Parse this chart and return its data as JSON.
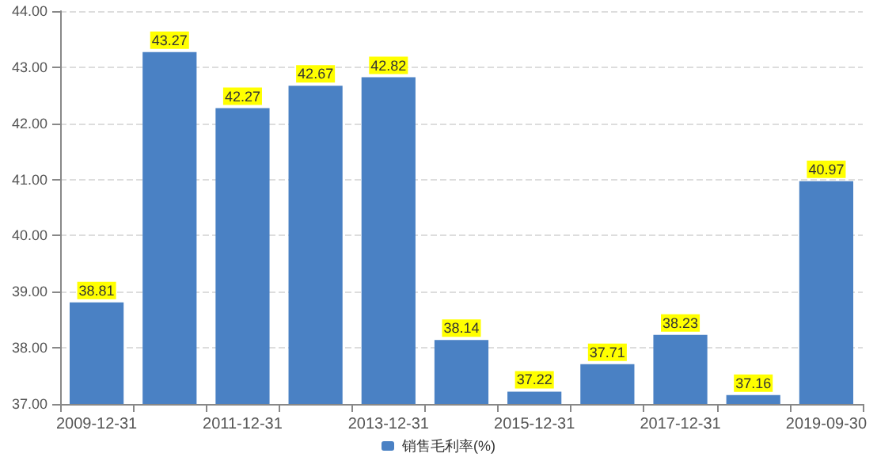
{
  "chart_data": {
    "type": "bar",
    "categories": [
      "2009-12-31",
      null,
      "2011-12-31",
      null,
      "2013-12-31",
      null,
      "2015-12-31",
      null,
      "2017-12-31",
      null,
      "2019-09-30"
    ],
    "series": [
      {
        "name": "销售毛利率(%)",
        "color": "#4a81c4",
        "values": [
          38.81,
          43.27,
          42.27,
          42.67,
          42.82,
          38.14,
          37.22,
          37.71,
          38.23,
          37.16,
          40.97
        ]
      }
    ],
    "ylim": [
      37,
      44
    ],
    "yticks": [
      {
        "value": 37,
        "label": "37.00"
      },
      {
        "value": 38,
        "label": "38.00"
      },
      {
        "value": 39,
        "label": "39.00"
      },
      {
        "value": 40,
        "label": "40.00"
      },
      {
        "value": 41,
        "label": "41.00"
      },
      {
        "value": 42,
        "label": "42.00"
      },
      {
        "value": 43,
        "label": "43.00"
      },
      {
        "value": 44,
        "label": "44.00"
      }
    ],
    "grid": "y",
    "legend": "bottom",
    "data_labels": true
  }
}
